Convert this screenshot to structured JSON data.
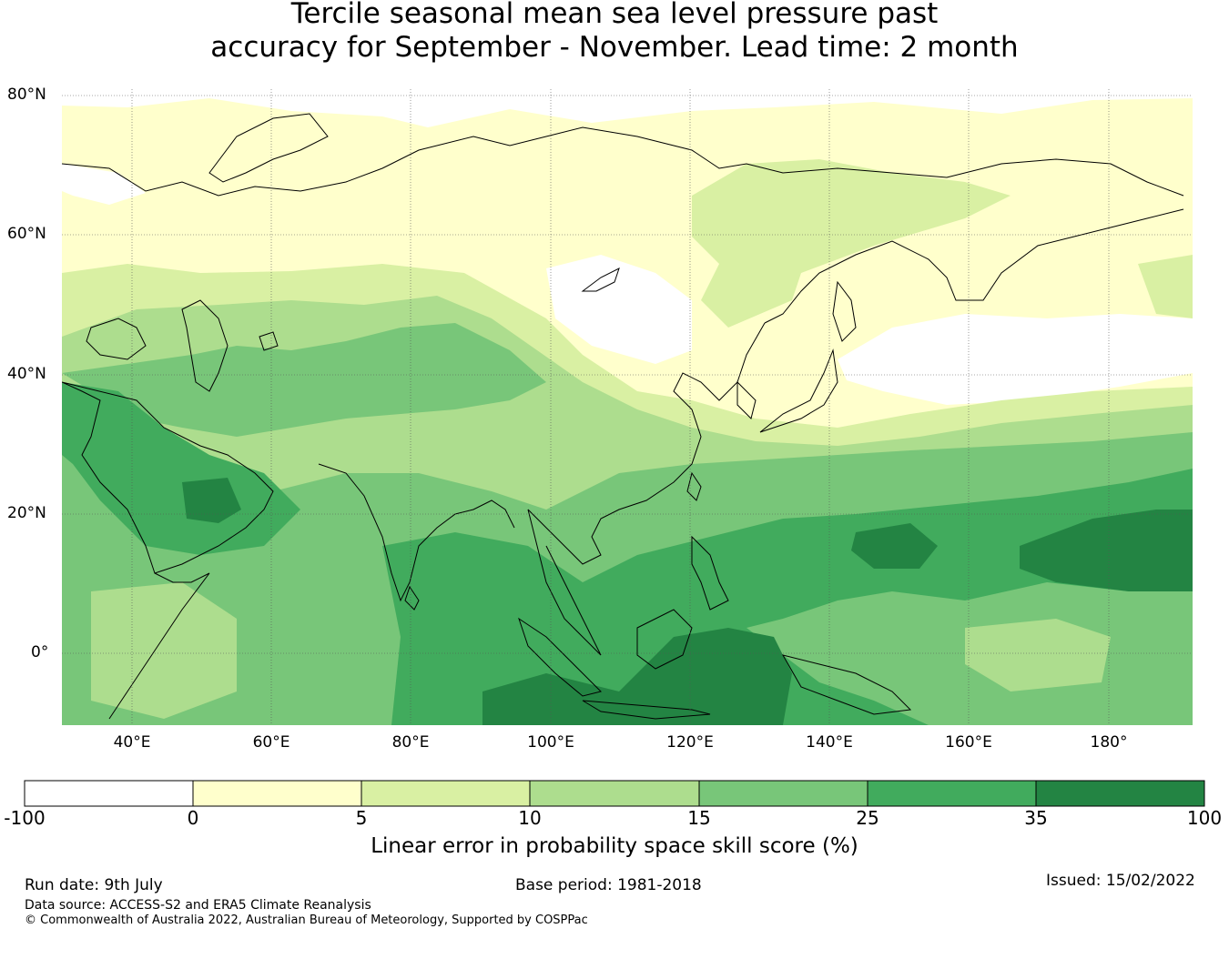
{
  "title": {
    "line1": "Tercile seasonal mean sea level pressure past",
    "line2": "accuracy for September - November. Lead time: 2 month"
  },
  "map": {
    "lat_labels": [
      "80°N",
      "60°N",
      "40°N",
      "20°N",
      "0°"
    ],
    "lon_labels": [
      "40°E",
      "60°E",
      "80°E",
      "100°E",
      "120°E",
      "140°E",
      "160°E",
      "180°"
    ]
  },
  "colorbar": {
    "ticks": [
      "-100",
      "0",
      "5",
      "10",
      "15",
      "25",
      "35",
      "100"
    ],
    "colors": [
      "#ffffff",
      "#ffffcc",
      "#d9f0a3",
      "#addd8e",
      "#78c679",
      "#41ab5d",
      "#238443"
    ],
    "label": "Linear error in probability space skill score (%)"
  },
  "footer": {
    "run_date": "Run date: 9th July",
    "base_period": "Base period: 1981-2018",
    "issued": "Issued: 15/02/2022",
    "data_source": "Data source: ACCESS-S2 and ERA5 Climate Reanalysis",
    "copyright": "© Commonwealth of Australia 2022, Australian Bureau of Meteorology, Supported by COSPPac"
  }
}
